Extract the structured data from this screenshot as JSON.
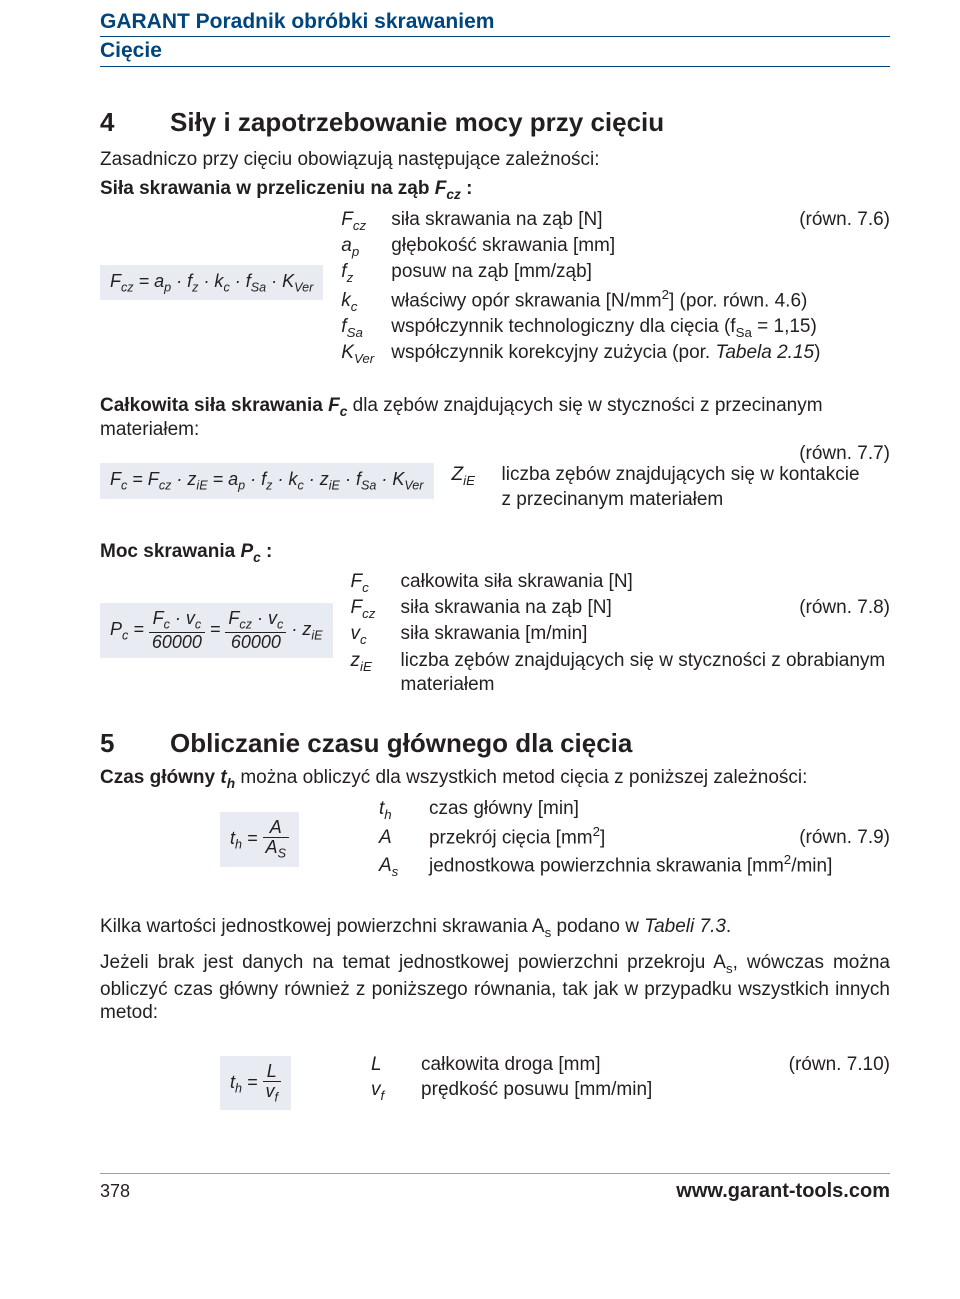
{
  "header": {
    "line1": "GARANT Poradnik obróbki skrawaniem",
    "line2": "Cięcie"
  },
  "sec4": {
    "num": "4",
    "title": "Siły i zapotrzebowanie mocy przy cięciu",
    "intro": "Zasadniczo przy cięciu obowiązują następujące zależności:",
    "sub1_pre": "Siła skrawania w przeliczeniu na ząb ",
    "sub1_sym": "F",
    "sub1_sub": "cz",
    "sub1_post": " :",
    "formula1": "F<sub>cz</sub> = a<sub>p</sub> · f<sub>z</sub> · k<sub>c</sub> · f<sub>Sa</sub> · K<sub>Ver</sub>",
    "eq76": "(równ. 7.6)",
    "defs1": [
      {
        "s": "F<sub>cz</sub>",
        "t": "siła skrawania na ząb [N]"
      },
      {
        "s": "a<sub>p</sub>",
        "t": "głębokość skrawania [mm]"
      },
      {
        "s": "f<sub>z</sub>",
        "t": "posuw na ząb  [mm/ząb]"
      },
      {
        "s": "k<sub>c</sub>",
        "t": "właściwy opór skrawania [N/mm<span class=\"sup\">2</span>] (por. równ. 4.6)"
      },
      {
        "s": "f<sub>Sa</sub>",
        "t": "współczynnik technologiczny dla cięcia (f<sub>Sa</sub> = 1,15)"
      },
      {
        "s": "K<sub>Ver</sub>",
        "t": "współczynnik korekcyjny zużycia (por. <i>Tabela 2.15</i>)"
      }
    ],
    "sub2_pre": "Całkowita siła skrawania ",
    "sub2_sym": "F",
    "sub2_sub": "c",
    "sub2_post": " dla zębów znajdujących się w styczności z przecinanym materiałem:",
    "eq77": "(równ. 7.7)",
    "formula2": "F<sub>c</sub> = F<sub>cz</sub> · z<sub>iE</sub> = a<sub>p</sub> · f<sub>z</sub> · k<sub>c</sub> · z<sub>iE</sub> · f<sub>Sa</sub> · K<sub>Ver</sub>",
    "def2_sym": "Z<sub>iE</sub>",
    "def2_txt": "liczba zębów znajdujących się w kontakcie z przecinanym materiałem",
    "sub3_pre": "Moc skrawania ",
    "sub3_sym": "P",
    "sub3_sub": "c",
    "sub3_post": " :",
    "formula3_lhs": "P<sub>c</sub> = ",
    "formula3_f1n": "F<sub>c</sub> · v<sub>c</sub>",
    "formula3_f1d": "60000",
    "formula3_mid": " = ",
    "formula3_f2n": "F<sub>cz</sub> · v<sub>c</sub>",
    "formula3_f2d": "60000",
    "formula3_rhs": " · z<sub>iE</sub>",
    "eq78": "(równ. 7.8)",
    "defs3": [
      {
        "s": "F<sub>c</sub>",
        "t": "całkowita siła skrawania [N]"
      },
      {
        "s": "F<sub>cz</sub>",
        "t": "siła skrawania na ząb [N]"
      },
      {
        "s": "v<sub>c</sub>",
        "t": "siła skrawania  [m/min]"
      },
      {
        "s": "z<sub>iE</sub>",
        "t": "liczba zębów znajdujących się w styczności z obrabianym materiałem"
      }
    ]
  },
  "sec5": {
    "num": "5",
    "title": "Obliczanie czasu głównego dla cięcia",
    "intro_pre": "Czas główny ",
    "intro_sym": "t",
    "intro_sub": "h",
    "intro_post": " można obliczyć dla wszystkich metod cięcia z poniższej zależności:",
    "formula_lhs": "t<sub>h</sub> = ",
    "formula_num": "A",
    "formula_den": "A<sub>S</sub>",
    "eq79": "(równ. 7.9)",
    "defs": [
      {
        "s": "t<sub>h</sub>",
        "t": "czas główny [min]"
      },
      {
        "s": "A",
        "t": "przekrój cięcia [mm<span class=\"sup\">2</span>]"
      },
      {
        "s": "A<sub>s</sub>",
        "t": "jednostkowa powierzchnia skrawania [mm<span class=\"sup\">2</span>/min]"
      }
    ],
    "para2": "Kilka wartości jednostkowej powierzchni skrawania A<sub>s</sub> podano w <i>Tabeli 7.3</i>.",
    "para3": "Jeżeli brak jest danych na temat jednostkowej powierzchni przekroju A<sub>s</sub>, wówczas można obliczyć czas główny również z poniższego równania, tak jak w przypadku wszystkich innych metod:",
    "formula2_lhs": "t<sub>h</sub> = ",
    "formula2_num": "L",
    "formula2_den": "v<sub>f</sub>",
    "eq710": "(równ. 7.10)",
    "defs2": [
      {
        "s": "L",
        "t": "całkowita droga [mm]"
      },
      {
        "s": "v<sub>f</sub>",
        "t": "prędkość posuwu [mm/min]"
      }
    ]
  },
  "footer": {
    "page": "378",
    "url": "www.garant-tools.com"
  }
}
